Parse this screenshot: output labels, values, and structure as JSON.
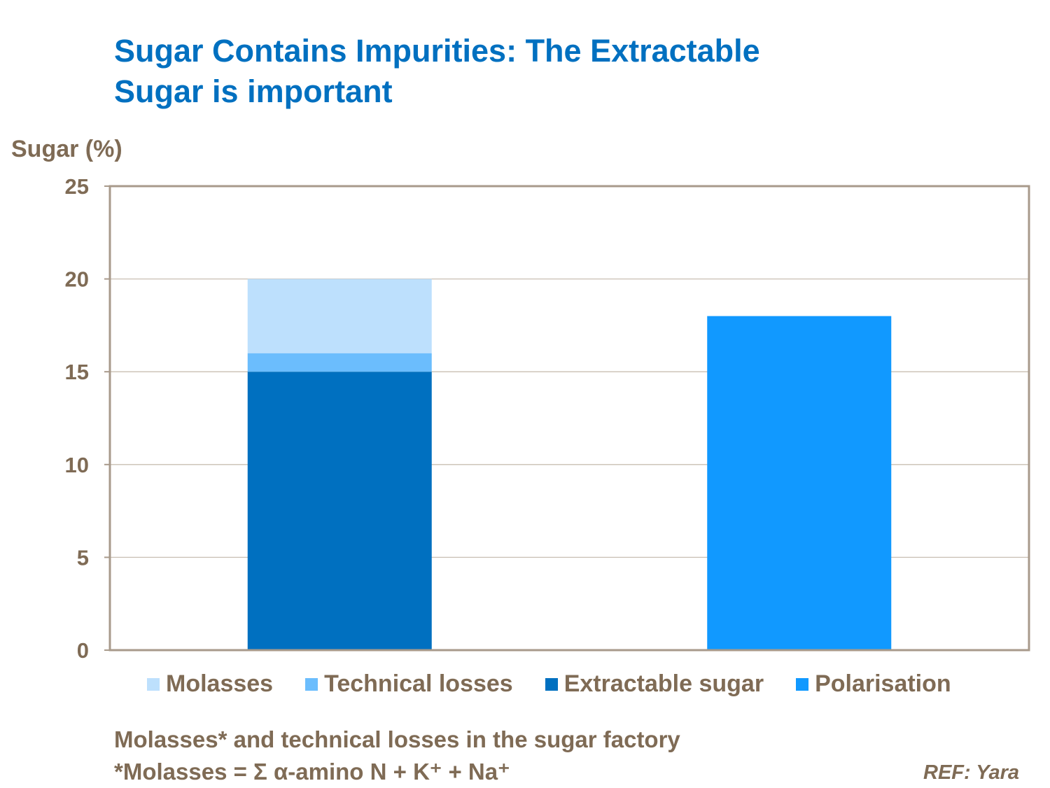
{
  "title_line1": "Sugar Contains Impurities: The Extractable",
  "title_line2": "Sugar is important",
  "chart_data": {
    "type": "bar",
    "stacked": true,
    "ylabel": "Sugar (%)",
    "ylim": [
      0,
      25
    ],
    "yticks": [
      "0",
      "5",
      "10",
      "15",
      "20",
      "25"
    ],
    "grid": true,
    "legend_position": "bottom",
    "bars": [
      {
        "segments": [
          {
            "series": "Extractable sugar",
            "value": 15
          },
          {
            "series": "Technical losses",
            "value": 1
          },
          {
            "series": "Molasses",
            "value": 4
          }
        ]
      },
      {
        "segments": [
          {
            "series": "Polarisation",
            "value": 18
          }
        ]
      }
    ],
    "series": [
      {
        "name": "Molasses",
        "color": "#BDE0FD"
      },
      {
        "name": "Technical losses",
        "color": "#6BBDFD"
      },
      {
        "name": "Extractable sugar",
        "color": "#0070C0"
      },
      {
        "name": "Polarisation",
        "color": "#1199FF"
      }
    ]
  },
  "note_line1": "Molasses* and technical losses in the sugar factory",
  "note_line2": "*Molasses = Σ α-amino N + K⁺ + Na⁺",
  "reference": "REF: Yara"
}
